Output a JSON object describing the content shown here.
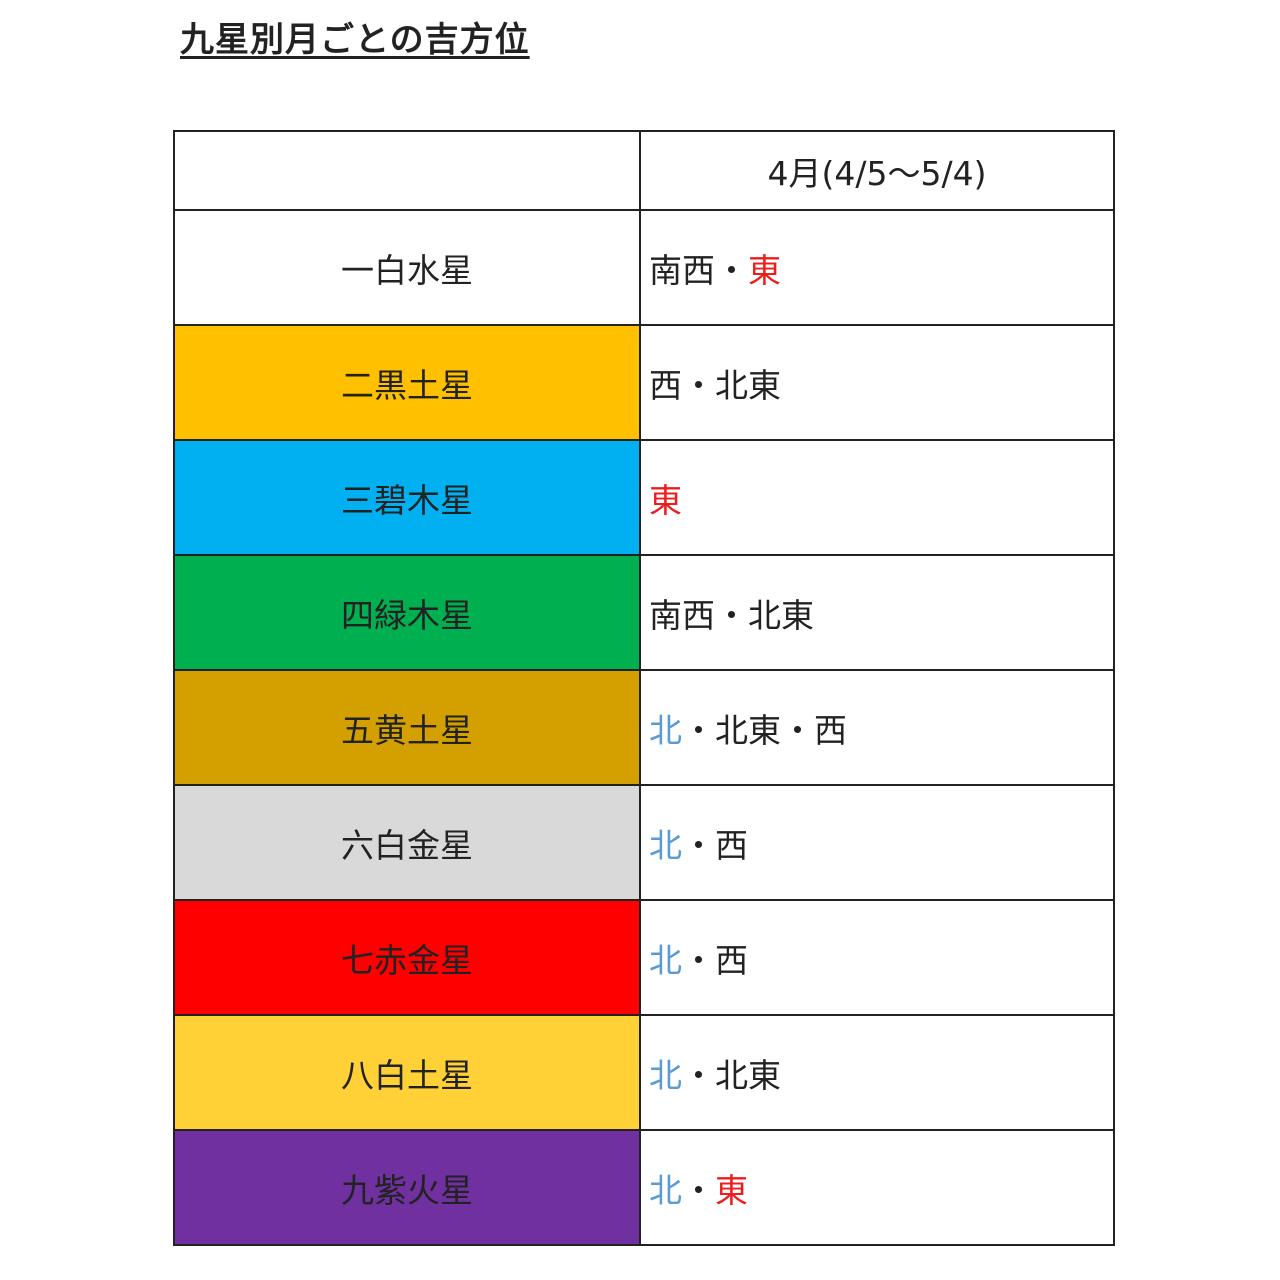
{
  "title": "九星別月ごとの吉方位",
  "header": {
    "star_col": "",
    "month": "4月(4/5〜5/4)"
  },
  "colors": {
    "red": "#ee1c1c",
    "blue": "#5b9bd5",
    "black": "#222222"
  },
  "rows": [
    {
      "star": "一白水星",
      "bg": "#ffffff",
      "directions": [
        {
          "text": "南西",
          "color": "#222222"
        },
        {
          "text": "・",
          "color": "#222222"
        },
        {
          "text": "東",
          "color": "#ee1c1c"
        }
      ]
    },
    {
      "star": "二黒土星",
      "bg": "#ffc000",
      "directions": [
        {
          "text": "西",
          "color": "#222222"
        },
        {
          "text": "・",
          "color": "#222222"
        },
        {
          "text": "北東",
          "color": "#222222"
        }
      ]
    },
    {
      "star": "三碧木星",
      "bg": "#00b0f0",
      "directions": [
        {
          "text": "東",
          "color": "#ee1c1c"
        }
      ]
    },
    {
      "star": "四緑木星",
      "bg": "#00b050",
      "directions": [
        {
          "text": "南西",
          "color": "#222222"
        },
        {
          "text": "・",
          "color": "#222222"
        },
        {
          "text": "北東",
          "color": "#222222"
        }
      ]
    },
    {
      "star": "五黄土星",
      "bg": "#d4a000",
      "directions": [
        {
          "text": "北",
          "color": "#5b9bd5"
        },
        {
          "text": "・",
          "color": "#222222"
        },
        {
          "text": "北東",
          "color": "#222222"
        },
        {
          "text": "・",
          "color": "#222222"
        },
        {
          "text": "西",
          "color": "#222222"
        }
      ]
    },
    {
      "star": "六白金星",
      "bg": "#d9d9d9",
      "directions": [
        {
          "text": "北",
          "color": "#5b9bd5"
        },
        {
          "text": "・",
          "color": "#222222"
        },
        {
          "text": "西",
          "color": "#222222"
        }
      ]
    },
    {
      "star": "七赤金星",
      "bg": "#ff0000",
      "directions": [
        {
          "text": "北",
          "color": "#5b9bd5"
        },
        {
          "text": "・",
          "color": "#222222"
        },
        {
          "text": "西",
          "color": "#222222"
        }
      ]
    },
    {
      "star": "八白土星",
      "bg": "#ffd136",
      "directions": [
        {
          "text": "北",
          "color": "#5b9bd5"
        },
        {
          "text": "・",
          "color": "#222222"
        },
        {
          "text": "北東",
          "color": "#222222"
        }
      ]
    },
    {
      "star": "九紫火星",
      "bg": "#7030a0",
      "directions": [
        {
          "text": "北",
          "color": "#5b9bd5"
        },
        {
          "text": "・",
          "color": "#222222"
        },
        {
          "text": "東",
          "color": "#ee1c1c"
        }
      ]
    }
  ]
}
